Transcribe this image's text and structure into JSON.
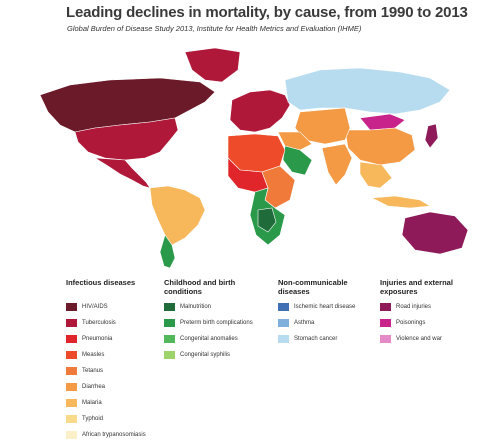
{
  "title": "Leading declines in mortality, by cause, from 1990 to 2013",
  "subtitle": "Global Burden of Disease Study 2013, Institute for Health Metrics and Evaluation (IHME)",
  "legend": [
    {
      "title": "Infectious diseases",
      "items": [
        {
          "label": "HIV/AIDS",
          "color": "#6b1a2a"
        },
        {
          "label": "Tuberculosis",
          "color": "#b0183a"
        },
        {
          "label": "Pneumonia",
          "color": "#e0262b"
        },
        {
          "label": "Measles",
          "color": "#ee4b2b"
        },
        {
          "label": "Tetanus",
          "color": "#f07a3a"
        },
        {
          "label": "Diarrhea",
          "color": "#f49a45"
        },
        {
          "label": "Malaria",
          "color": "#f7b75b"
        },
        {
          "label": "Typhoid",
          "color": "#f9d98a"
        },
        {
          "label": "African trypanosomiasis",
          "color": "#fbf0c8"
        }
      ]
    },
    {
      "title": "Childhood and birth conditions",
      "items": [
        {
          "label": "Malnutrition",
          "color": "#1f6b3a"
        },
        {
          "label": "Preterm birth complications",
          "color": "#2a9a4a"
        },
        {
          "label": "Congenital anomalies",
          "color": "#52b85a"
        },
        {
          "label": "Congenital syphilis",
          "color": "#9ed36a"
        }
      ]
    },
    {
      "title": "Non-communicable diseases",
      "items": [
        {
          "label": "Ischemic heart disease",
          "color": "#3f6fb5"
        },
        {
          "label": "Asthma",
          "color": "#7fb0dc"
        },
        {
          "label": "Stomach cancer",
          "color": "#b7dcef"
        }
      ]
    },
    {
      "title": "Injuries and external exposures",
      "items": [
        {
          "label": "Road injuries",
          "color": "#8e1a5a"
        },
        {
          "label": "Poisonings",
          "color": "#c8238a"
        },
        {
          "label": "Violence and war",
          "color": "#e48ac8"
        }
      ]
    }
  ],
  "map": {
    "colors": {
      "north_america": "#b0183a",
      "canada": "#6b1a2a",
      "greenland": "#b0183a",
      "central_america": "#b0183a",
      "south_america": "#f7b75b",
      "south_america_south": "#2a9a4a",
      "europe": "#b0183a",
      "russia": "#b7dcef",
      "north_africa": "#ee4b2b",
      "west_africa": "#e0262b",
      "east_africa": "#f07a3a",
      "southern_africa": "#2a9a4a",
      "south_africa_center": "#1f6b3a",
      "middle_east": "#f49a45",
      "arabia": "#2a9a4a",
      "central_asia": "#f49a45",
      "china": "#f49a45",
      "mongolia": "#c8238a",
      "india": "#f49a45",
      "southeast_asia": "#f7b75b",
      "japan": "#8e1a5a",
      "australia": "#8e1a5a",
      "indonesia": "#f7b75b",
      "ocean": "#ffffff"
    }
  }
}
